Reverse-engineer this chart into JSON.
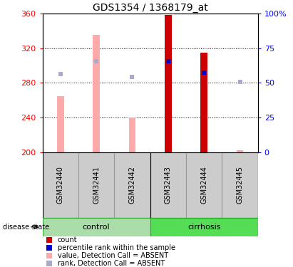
{
  "title": "GDS1354 / 1368179_at",
  "samples": [
    "GSM32440",
    "GSM32441",
    "GSM32442",
    "GSM32443",
    "GSM32444",
    "GSM32445"
  ],
  "ylim_left": [
    200,
    360
  ],
  "ylim_right": [
    0,
    100
  ],
  "yticks_left": [
    200,
    240,
    280,
    320,
    360
  ],
  "yticks_right": [
    0,
    25,
    50,
    75,
    100
  ],
  "value_absent": [
    265,
    335,
    240,
    null,
    null,
    202
  ],
  "rank_absent_y": [
    290,
    305,
    287,
    null,
    null,
    281
  ],
  "count": [
    null,
    null,
    null,
    358,
    315,
    null
  ],
  "percentile_y": [
    null,
    null,
    null,
    305,
    292,
    null
  ],
  "color_count": "#cc0000",
  "color_percentile": "#0000cc",
  "color_value_absent": "#ffaaaa",
  "color_rank_absent": "#aaaacc",
  "control_light": "#bbeeaa",
  "control_dark": "#55cc55",
  "cirrhosis_light": "#55ee55",
  "cirrhosis_dark": "#22aa22",
  "gray_box": "#cccccc",
  "gray_border": "#999999"
}
